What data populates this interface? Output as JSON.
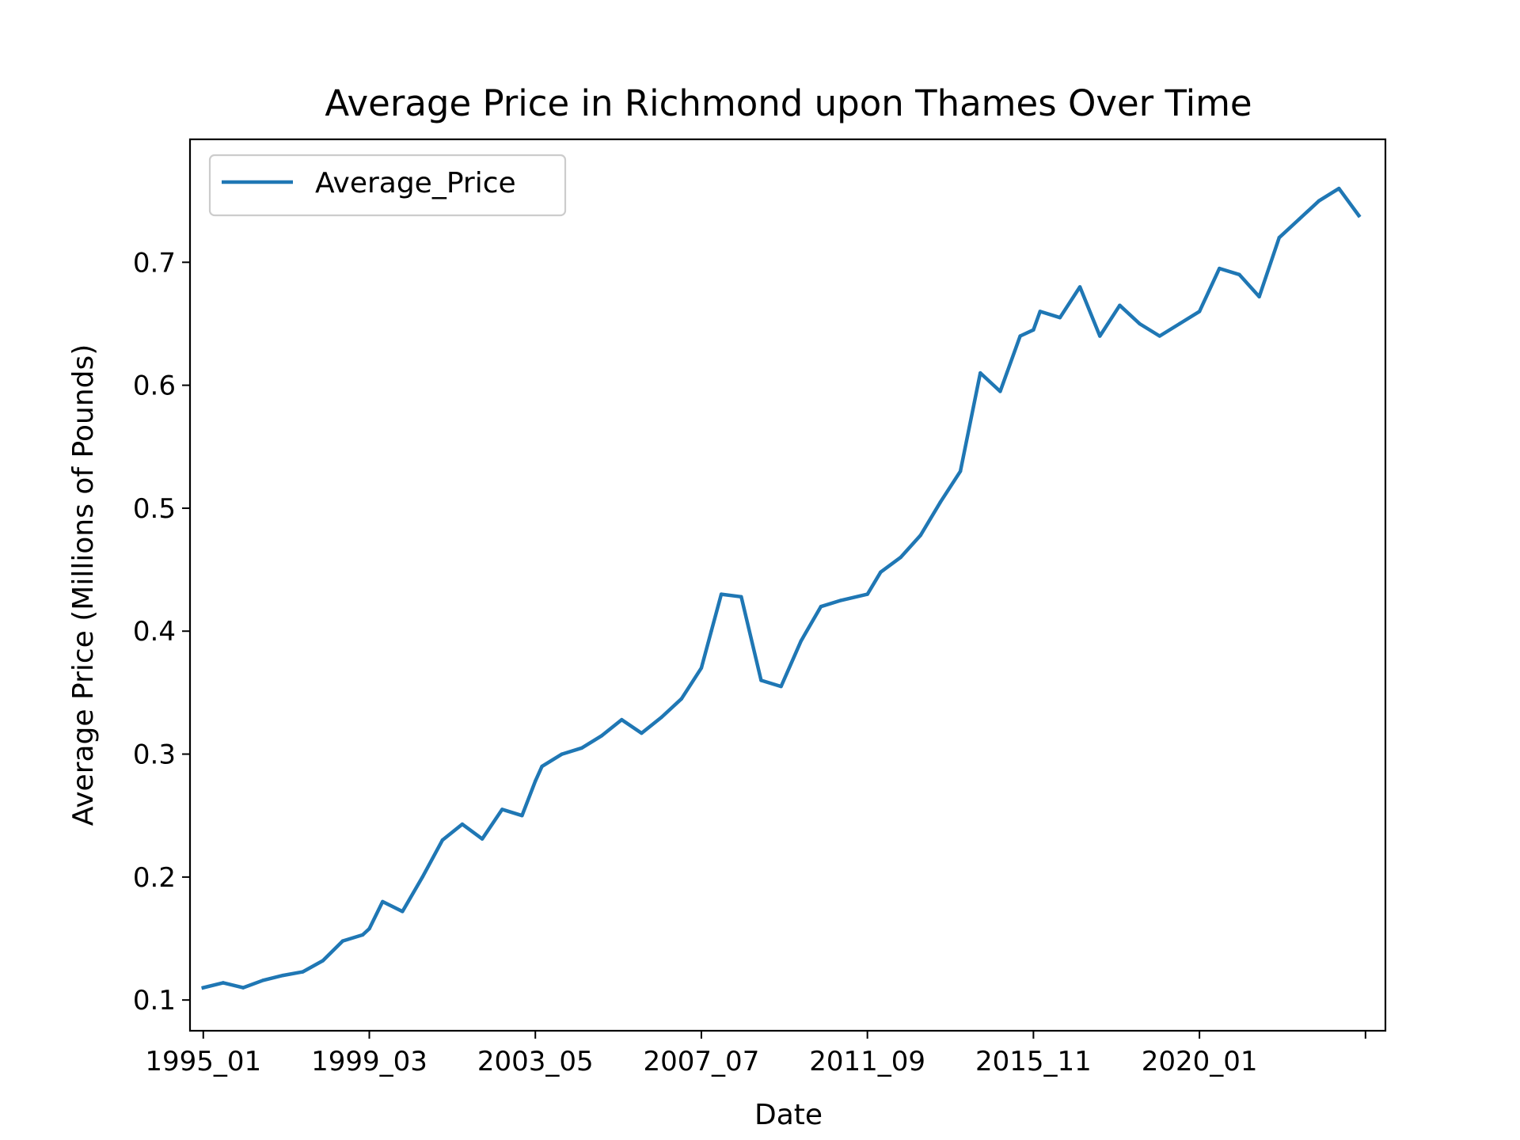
{
  "chart_data": {
    "type": "line",
    "title": "Average Price in Richmond upon Thames Over Time",
    "xlabel": "Date",
    "ylabel": "Average Price (Millions of Pounds)",
    "x_tick_labels": [
      "1995_01",
      "1999_03",
      "2003_05",
      "2007_07",
      "2011_09",
      "2015_11",
      "2020_01",
      ""
    ],
    "y_ticks": [
      0.1,
      0.2,
      0.3,
      0.4,
      0.5,
      0.6,
      0.7
    ],
    "y_tick_labels": [
      "0.1",
      "0.2",
      "0.3",
      "0.4",
      "0.5",
      "0.6",
      "0.7"
    ],
    "ylim": [
      0.075,
      0.8
    ],
    "xlim": [
      "1994_09",
      "2024_09"
    ],
    "legend": {
      "position": "top-left",
      "entries": [
        "Average_Price"
      ]
    },
    "grid": false,
    "series": [
      {
        "name": "Average_Price",
        "color": "#1f77b4",
        "x": [
          "1995_01",
          "1995_07",
          "1996_01",
          "1996_07",
          "1997_01",
          "1997_07",
          "1998_01",
          "1998_07",
          "1999_01",
          "1999_03",
          "1999_07",
          "2000_01",
          "2000_07",
          "2001_01",
          "2001_07",
          "2002_01",
          "2002_07",
          "2003_01",
          "2003_05",
          "2003_07",
          "2004_01",
          "2004_07",
          "2005_01",
          "2005_07",
          "2006_01",
          "2006_07",
          "2007_01",
          "2007_07",
          "2007_10",
          "2008_01",
          "2008_07",
          "2009_01",
          "2009_07",
          "2010_01",
          "2010_07",
          "2011_01",
          "2011_09",
          "2012_01",
          "2012_07",
          "2013_01",
          "2013_07",
          "2014_01",
          "2014_07",
          "2015_01",
          "2015_07",
          "2015_11",
          "2016_01",
          "2016_07",
          "2017_01",
          "2017_07",
          "2018_01",
          "2018_07",
          "2019_01",
          "2019_07",
          "2020_01",
          "2020_07",
          "2021_01",
          "2021_07",
          "2022_01",
          "2022_07",
          "2023_01",
          "2023_07",
          "2024_01"
        ],
        "values": [
          0.11,
          0.114,
          0.11,
          0.116,
          0.12,
          0.123,
          0.132,
          0.148,
          0.153,
          0.158,
          0.18,
          0.172,
          0.2,
          0.23,
          0.243,
          0.231,
          0.255,
          0.25,
          0.278,
          0.29,
          0.3,
          0.305,
          0.315,
          0.328,
          0.317,
          0.33,
          0.345,
          0.37,
          0.4,
          0.43,
          0.428,
          0.36,
          0.355,
          0.392,
          0.42,
          0.425,
          0.43,
          0.448,
          0.46,
          0.478,
          0.505,
          0.53,
          0.61,
          0.595,
          0.64,
          0.645,
          0.66,
          0.655,
          0.68,
          0.64,
          0.665,
          0.65,
          0.64,
          0.65,
          0.66,
          0.695,
          0.69,
          0.672,
          0.72,
          0.735,
          0.75,
          0.76,
          0.738
        ]
      }
    ]
  }
}
